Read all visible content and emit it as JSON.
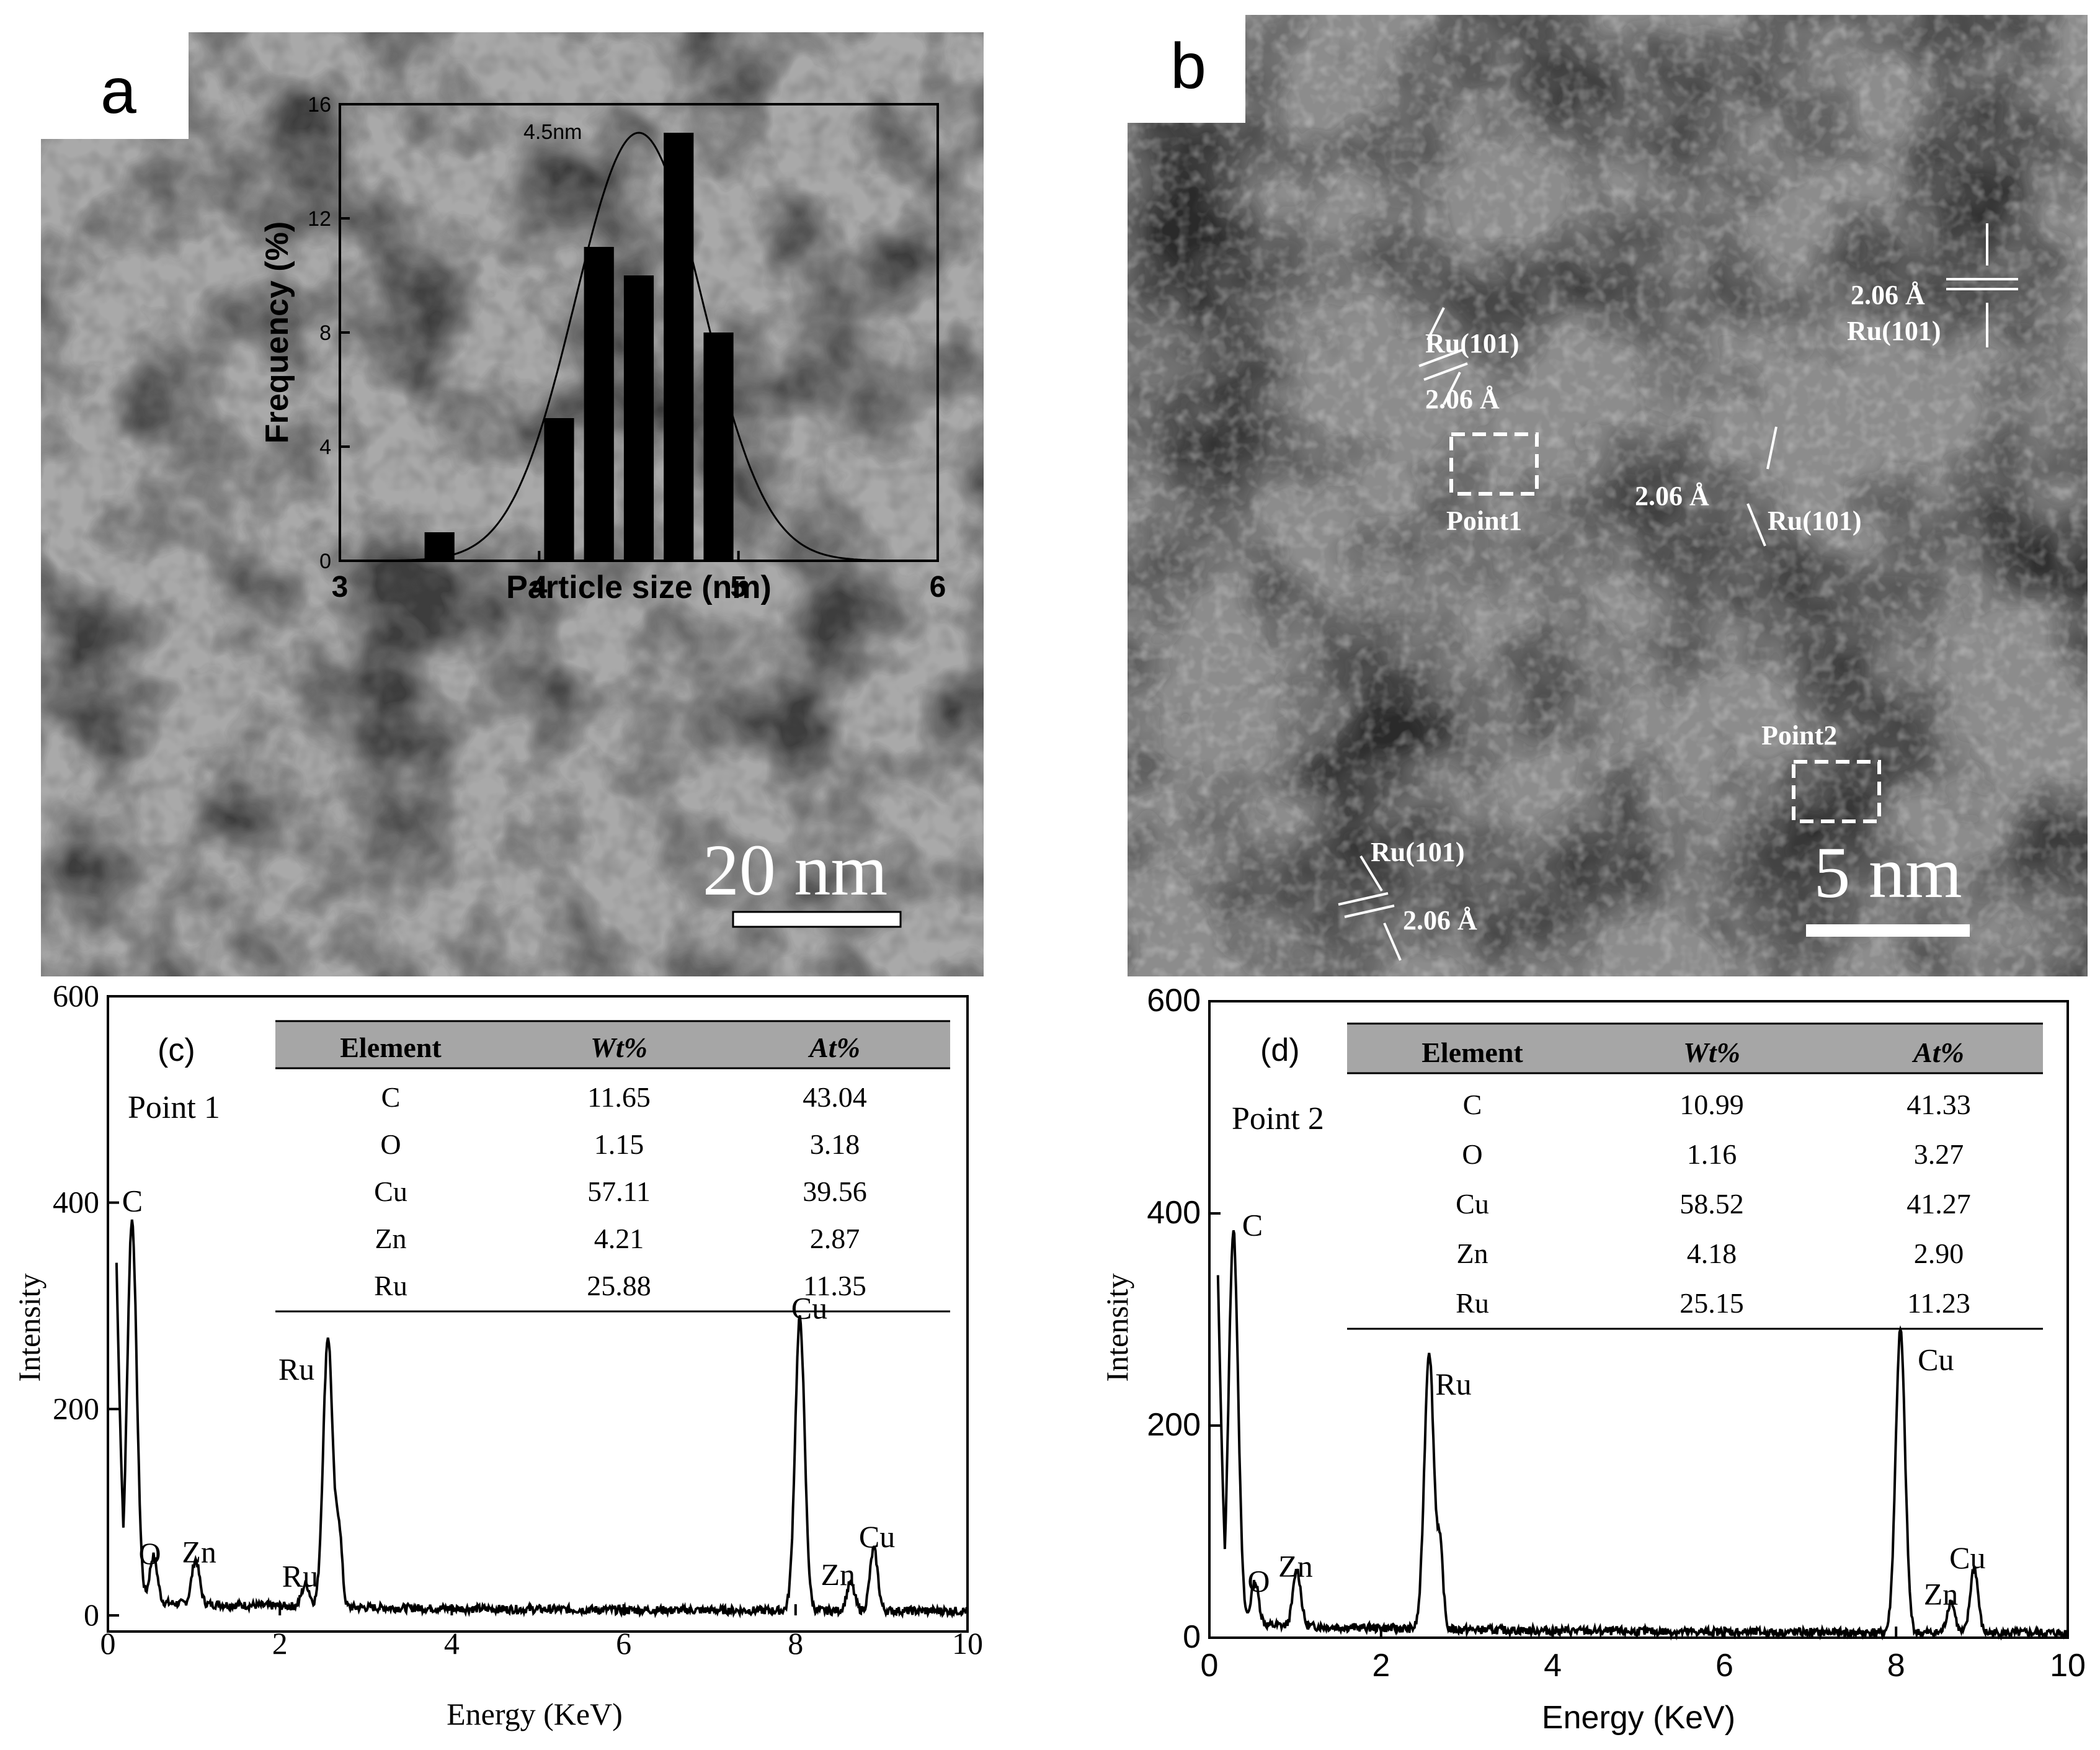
{
  "panel_a": {
    "label": "a",
    "scale_bar": "20 nm",
    "inset": {
      "xlabel": "Particle size (nm)",
      "ylabel": "Frequency (%)",
      "peak_label": "4.5nm",
      "x_ticks": [
        "3",
        "4",
        "5",
        "6"
      ],
      "y_ticks": [
        "0",
        "4",
        "8",
        "12",
        "16"
      ]
    }
  },
  "panel_b": {
    "label": "b",
    "scale_bar": "5 nm",
    "annotations": {
      "ru1": "Ru(101)",
      "d1": "2.06 Å",
      "ru2": "Ru(101)",
      "d2": "2.06 Å",
      "ru3": "Ru(101)",
      "d3": "2.06 Å",
      "ru4": "Ru(101)",
      "d4": "2.06 Å",
      "point1": "Point1",
      "point2": "Point2"
    }
  },
  "panel_c": {
    "label": "(c)",
    "point": "Point 1",
    "xlabel": "Energy (KeV)",
    "ylabel": "Intensity",
    "x_ticks": [
      "0",
      "2",
      "4",
      "6",
      "8",
      "10"
    ],
    "y_ticks": [
      "0",
      "200",
      "400",
      "600"
    ],
    "peaks": {
      "C": "C",
      "O": "O",
      "Zn1": "Zn",
      "Ru1": "Ru",
      "Ru2": "Ru",
      "Cu1": "Cu",
      "Zn2": "Zn",
      "Cu2": "Cu"
    },
    "table": {
      "headers": [
        "Element",
        "Wt%",
        "At%"
      ],
      "rows": [
        [
          "C",
          "11.65",
          "43.04"
        ],
        [
          "O",
          "1.15",
          "3.18"
        ],
        [
          "Cu",
          "57.11",
          "39.56"
        ],
        [
          "Zn",
          "4.21",
          "2.87"
        ],
        [
          "Ru",
          "25.88",
          "11.35"
        ]
      ]
    }
  },
  "panel_d": {
    "label": "(d)",
    "point": "Point 2",
    "xlabel": "Energy (KeV)",
    "ylabel": "Intensity",
    "x_ticks": [
      "0",
      "2",
      "4",
      "6",
      "8",
      "10"
    ],
    "y_ticks": [
      "0",
      "200",
      "400",
      "600"
    ],
    "peaks": {
      "C": "C",
      "O": "O",
      "Zn1": "Zn",
      "Ru1": "Ru",
      "Cu1": "Cu",
      "Zn2": "Zn",
      "Cu2": "Cu"
    },
    "table": {
      "headers": [
        "Element",
        "Wt%",
        "At%"
      ],
      "rows": [
        [
          "C",
          "10.99",
          "41.33"
        ],
        [
          "O",
          "1.16",
          "3.27"
        ],
        [
          "Cu",
          "58.52",
          "41.27"
        ],
        [
          "Zn",
          "4.18",
          "2.90"
        ],
        [
          "Ru",
          "25.15",
          "11.23"
        ]
      ]
    }
  },
  "chart_data": [
    {
      "type": "bar",
      "panel": "a-inset",
      "xlabel": "Particle size (nm)",
      "ylabel": "Frequency (%)",
      "xlim": [
        3,
        6
      ],
      "ylim": [
        0,
        16
      ],
      "x": [
        3.5,
        4.1,
        4.3,
        4.5,
        4.7,
        4.9
      ],
      "values": [
        1,
        5,
        11,
        10,
        15,
        8
      ],
      "fit": {
        "type": "gaussian",
        "center": 4.5,
        "label": "4.5nm"
      }
    },
    {
      "type": "line",
      "panel": "c",
      "xlabel": "Energy (KeV)",
      "ylabel": "Intensity",
      "xlim": [
        0,
        10
      ],
      "ylim": [
        0,
        600
      ],
      "peaks": [
        {
          "label": "C",
          "x": 0.28,
          "y": 370
        },
        {
          "label": "O",
          "x": 0.53,
          "y": 45
        },
        {
          "label": "Zn",
          "x": 1.02,
          "y": 43
        },
        {
          "label": "Ru",
          "x": 2.3,
          "y": 22
        },
        {
          "label": "Ru",
          "x": 2.56,
          "y": 262
        },
        {
          "label": "Cu",
          "x": 8.05,
          "y": 283
        },
        {
          "label": "Zn",
          "x": 8.64,
          "y": 27
        },
        {
          "label": "Cu",
          "x": 8.91,
          "y": 60
        }
      ]
    },
    {
      "type": "line",
      "panel": "d",
      "xlabel": "Energy (KeV)",
      "ylabel": "Intensity",
      "xlim": [
        0,
        10
      ],
      "ylim": [
        0,
        600
      ],
      "peaks": [
        {
          "label": "C",
          "x": 0.28,
          "y": 370
        },
        {
          "label": "O",
          "x": 0.53,
          "y": 40
        },
        {
          "label": "Zn",
          "x": 1.02,
          "y": 53
        },
        {
          "label": "Ru",
          "x": 2.56,
          "y": 262
        },
        {
          "label": "Cu",
          "x": 8.05,
          "y": 285
        },
        {
          "label": "Zn",
          "x": 8.64,
          "y": 30
        },
        {
          "label": "Cu",
          "x": 8.91,
          "y": 62
        }
      ]
    }
  ]
}
